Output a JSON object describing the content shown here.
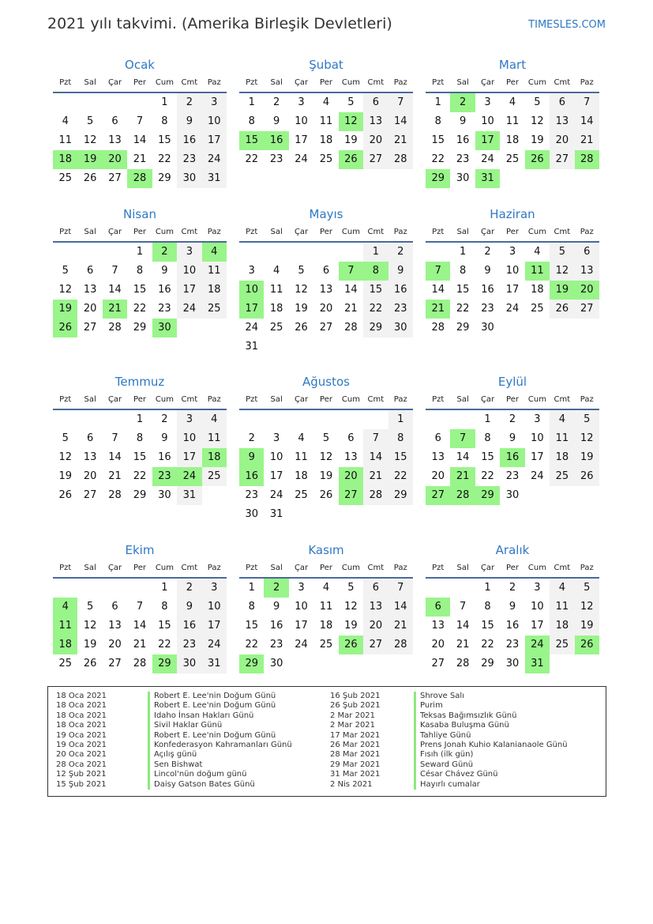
{
  "title": "2021 yılı takvimi. (Amerika Birleşik Devletleri)",
  "brand": "TIMESLES.COM",
  "year": 2021,
  "weekdays": [
    "Pzt",
    "Sal",
    "Çar",
    "Per",
    "Cum",
    "Cmt",
    "Paz"
  ],
  "colors": {
    "accent": "#2f78c4",
    "highlight": "#99f58a",
    "weekend": "#f2f2f2"
  },
  "months": [
    {
      "name": "Ocak",
      "highlights": [
        18,
        19,
        20,
        28
      ]
    },
    {
      "name": "Şubat",
      "highlights": [
        12,
        15,
        16,
        26
      ]
    },
    {
      "name": "Mart",
      "highlights": [
        2,
        17,
        26,
        28,
        29,
        31
      ]
    },
    {
      "name": "Nisan",
      "highlights": [
        2,
        4,
        19,
        21,
        26,
        30
      ]
    },
    {
      "name": "Mayıs",
      "highlights": [
        7,
        8,
        10,
        17
      ]
    },
    {
      "name": "Haziran",
      "highlights": [
        7,
        11,
        19,
        20,
        21
      ]
    },
    {
      "name": "Temmuz",
      "highlights": [
        18,
        23,
        24
      ]
    },
    {
      "name": "Ağustos",
      "highlights": [
        9,
        16,
        20,
        27
      ]
    },
    {
      "name": "Eylül",
      "highlights": [
        7,
        16,
        21,
        27,
        28,
        29
      ]
    },
    {
      "name": "Ekim",
      "highlights": [
        4,
        11,
        18,
        29
      ]
    },
    {
      "name": "Kasım",
      "highlights": [
        2,
        26,
        29
      ]
    },
    {
      "name": "Aralık",
      "highlights": [
        6,
        24,
        26,
        31
      ]
    }
  ],
  "holidays": [
    {
      "date": "18 Oca 2021",
      "name": "Robert E. Lee'nin Doğum Günü"
    },
    {
      "date": "18 Oca 2021",
      "name": "Robert E. Lee'nin Doğum Günü"
    },
    {
      "date": "18 Oca 2021",
      "name": "Idaho İnsan Hakları Günü"
    },
    {
      "date": "18 Oca 2021",
      "name": "Sivil Haklar Günü"
    },
    {
      "date": "19 Oca 2021",
      "name": "Robert E. Lee'nin Doğum Günü"
    },
    {
      "date": "19 Oca 2021",
      "name": "Konfederasyon Kahramanları Günü"
    },
    {
      "date": "20 Oca 2021",
      "name": "Açılış günü"
    },
    {
      "date": "28 Oca 2021",
      "name": "Sen Bishwat"
    },
    {
      "date": "12 Şub 2021",
      "name": "Lincol'nün doğum günü"
    },
    {
      "date": "15 Şub 2021",
      "name": "Daisy Gatson Bates Günü"
    },
    {
      "date": "16 Şub 2021",
      "name": "Shrove Salı"
    },
    {
      "date": "26 Şub 2021",
      "name": "Purim"
    },
    {
      "date": "2 Mar 2021",
      "name": "Teksas Bağımsızlık Günü"
    },
    {
      "date": "2 Mar 2021",
      "name": "Kasaba Buluşma Günü"
    },
    {
      "date": "17 Mar 2021",
      "name": "Tahliye Günü"
    },
    {
      "date": "26 Mar 2021",
      "name": "Prens Jonah Kuhio Kalanianaole Günü"
    },
    {
      "date": "28 Mar 2021",
      "name": "Fısıh (ilk gün)"
    },
    {
      "date": "29 Mar 2021",
      "name": "Seward Günü"
    },
    {
      "date": "31 Mar 2021",
      "name": "César Chávez Günü"
    },
    {
      "date": "2 Nis 2021",
      "name": "Hayırlı cumalar"
    }
  ]
}
